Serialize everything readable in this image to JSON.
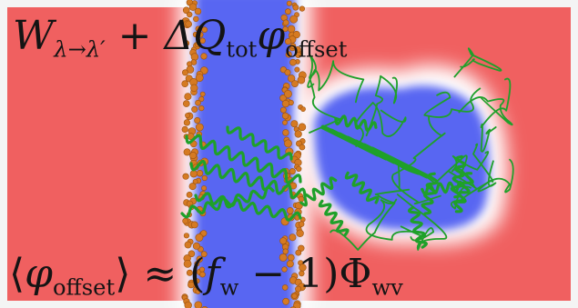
{
  "equation_top": {
    "W": "W",
    "sub_lambda": "λ→λ′",
    "plus": "+",
    "delta_q": "ΔQ",
    "sub_tot": "tot",
    "phi": "φ",
    "sub_offset": "offset"
  },
  "equation_bottom": {
    "open": "⟨",
    "phi": "φ",
    "sub_offset": "offset",
    "close": "⟩",
    "approx": " ≈ ",
    "paren_open": "(",
    "f": "f",
    "sub_w": "w",
    "minus": " − 1)",
    "Phi": "Φ",
    "sub_wv": "wv"
  },
  "colors": {
    "background_potential": "#f06060",
    "membrane_potential": "#5866f2",
    "transition": "#ffffff",
    "protein": "#1fa02a",
    "lipid_headgroups": "#d57a22",
    "frame": "#f4f4f4"
  }
}
